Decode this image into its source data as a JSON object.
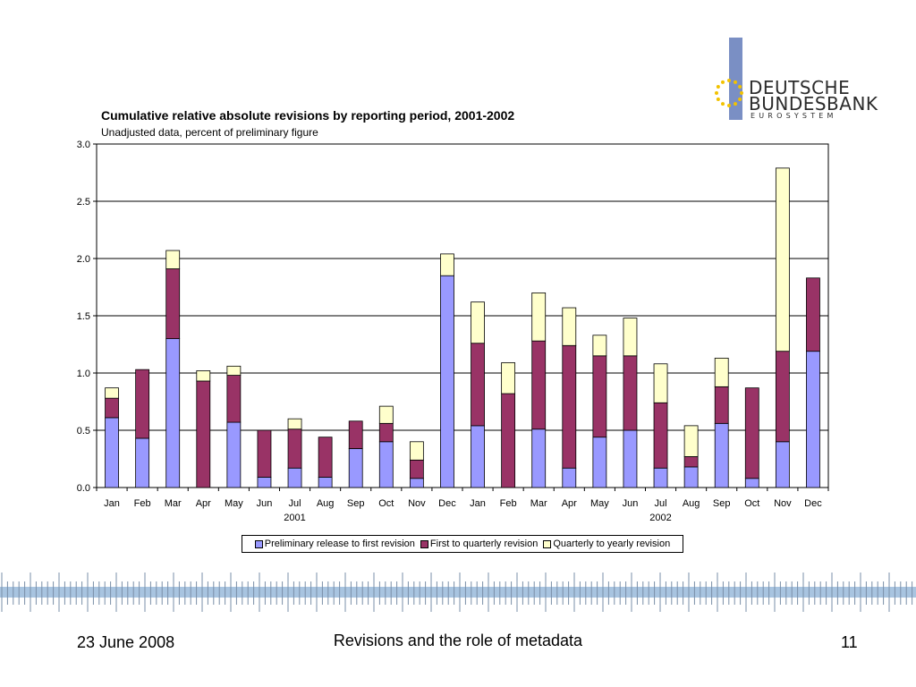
{
  "logo": {
    "line1": "DEUTSCHE",
    "line2": "BUNDESBANK",
    "line3": "EUROSYSTEM"
  },
  "footer": {
    "date": "23 June 2008",
    "title": "Revisions and the role of metadata",
    "page": "11"
  },
  "colors": {
    "preliminary": "#9999ff",
    "first_quarterly": "#993366",
    "quarterly_yearly": "#ffffcc"
  },
  "chart_data": {
    "type": "bar",
    "stacked": true,
    "title": "Cumulative relative absolute revisions by reporting period, 2001-2002",
    "subtitle": "Unadjusted data, percent of preliminary figure",
    "categories": [
      "Jan",
      "Feb",
      "Mar",
      "Apr",
      "May",
      "Jun",
      "Jul",
      "Aug",
      "Sep",
      "Oct",
      "Nov",
      "Dec",
      "Jan",
      "Feb",
      "Mar",
      "Apr",
      "May",
      "Jun",
      "Jul",
      "Aug",
      "Sep",
      "Oct",
      "Nov",
      "Dec"
    ],
    "year_labels": [
      {
        "index": 6,
        "label": "2001"
      },
      {
        "index": 18,
        "label": "2002"
      }
    ],
    "ylim": [
      0,
      3.0
    ],
    "yticks": [
      "0.0",
      "0.5",
      "1.0",
      "1.5",
      "2.0",
      "2.5",
      "3.0"
    ],
    "grid": true,
    "legend_position": "bottom",
    "series": [
      {
        "name": "Preliminary release to first revision",
        "values": [
          0.61,
          0.43,
          1.3,
          0.0,
          0.57,
          0.09,
          0.17,
          0.09,
          0.34,
          0.4,
          0.08,
          1.85,
          0.54,
          0.0,
          0.51,
          0.17,
          0.44,
          0.5,
          0.17,
          0.18,
          0.56,
          0.08,
          0.4,
          1.19
        ]
      },
      {
        "name": "First to quarterly revision",
        "values": [
          0.17,
          0.6,
          0.61,
          0.93,
          0.41,
          0.41,
          0.34,
          0.35,
          0.24,
          0.16,
          0.16,
          0.0,
          0.72,
          0.82,
          0.77,
          1.07,
          0.71,
          0.65,
          0.57,
          0.09,
          0.32,
          0.79,
          0.79,
          0.64
        ]
      },
      {
        "name": "Quarterly to yearly revision",
        "values": [
          0.09,
          0.0,
          0.16,
          0.09,
          0.08,
          0.0,
          0.09,
          0.0,
          0.0,
          0.15,
          0.16,
          0.19,
          0.36,
          0.27,
          0.42,
          0.33,
          0.18,
          0.33,
          0.34,
          0.27,
          0.25,
          0.0,
          1.6,
          0.0
        ]
      }
    ]
  }
}
